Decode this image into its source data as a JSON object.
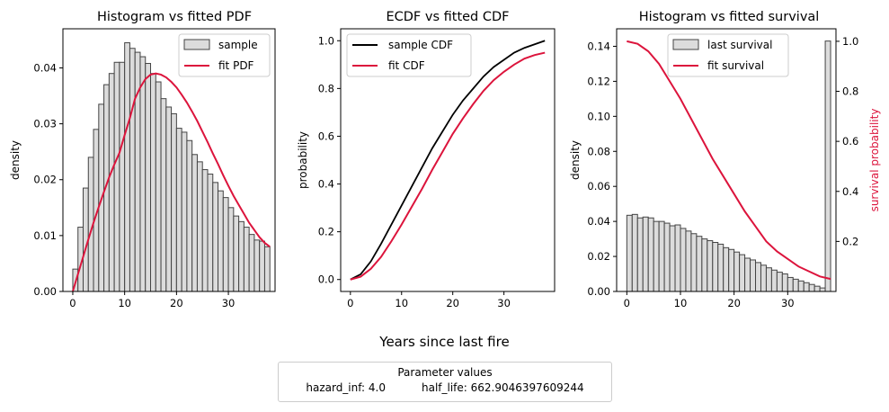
{
  "figure": {
    "xlabel": "Years since last fire",
    "params_title": "Parameter values",
    "params": [
      {
        "label": "hazard_inf: 4.0"
      },
      {
        "label": "half_life: 662.9046397609244"
      }
    ]
  },
  "colors": {
    "fit": "#dc143c",
    "bar_fill": "#dcdcdc",
    "bar_edge": "#444444",
    "ecdf": "#000000"
  },
  "chart_data": [
    {
      "type": "bar",
      "title": "Histogram vs fitted PDF",
      "xlabel": "",
      "ylabel": "density",
      "xlim": [
        -1.9,
        39.0
      ],
      "ylim": [
        0,
        0.047
      ],
      "xticks": [
        0,
        10,
        20,
        30
      ],
      "yticks": [
        0.0,
        0.01,
        0.02,
        0.03,
        0.04
      ],
      "ytick_labels": [
        "0.00",
        "0.01",
        "0.02",
        "0.03",
        "0.04"
      ],
      "bin_width": 1.0,
      "bin_starts": [
        0,
        1,
        2,
        3,
        4,
        5,
        6,
        7,
        8,
        9,
        10,
        11,
        12,
        13,
        14,
        15,
        16,
        17,
        18,
        19,
        20,
        21,
        22,
        23,
        24,
        25,
        26,
        27,
        28,
        29,
        30,
        31,
        32,
        33,
        34,
        35,
        36,
        37
      ],
      "values": [
        0.004,
        0.0115,
        0.0185,
        0.024,
        0.029,
        0.0335,
        0.037,
        0.039,
        0.041,
        0.041,
        0.0445,
        0.0435,
        0.0428,
        0.042,
        0.0408,
        0.039,
        0.0375,
        0.0345,
        0.033,
        0.0318,
        0.0292,
        0.0285,
        0.027,
        0.0245,
        0.0232,
        0.0218,
        0.021,
        0.0195,
        0.018,
        0.0168,
        0.015,
        0.0135,
        0.0125,
        0.0115,
        0.0102,
        0.0092,
        0.009,
        0.008
      ],
      "fit_x": [
        0,
        1,
        2,
        3,
        4,
        5,
        6,
        7,
        8,
        9,
        10,
        11,
        12,
        13,
        14,
        15,
        16,
        17,
        18,
        19,
        20,
        21,
        22,
        23,
        24,
        25,
        26,
        27,
        28,
        29,
        30,
        31,
        32,
        33,
        34,
        35,
        36,
        37,
        38
      ],
      "fit_y": [
        0.0,
        0.0031,
        0.0062,
        0.0093,
        0.0123,
        0.0151,
        0.0178,
        0.0204,
        0.0227,
        0.0248,
        0.028,
        0.031,
        0.0345,
        0.0365,
        0.038,
        0.0388,
        0.039,
        0.0388,
        0.0383,
        0.0375,
        0.0365,
        0.0352,
        0.0338,
        0.0322,
        0.0305,
        0.0286,
        0.0267,
        0.0247,
        0.0228,
        0.0208,
        0.0189,
        0.0171,
        0.0155,
        0.0139,
        0.0123,
        0.011,
        0.0097,
        0.0087,
        0.008
      ],
      "legend": [
        {
          "name": "sample"
        },
        {
          "name": "fit PDF"
        }
      ],
      "legend_position": "upper right"
    },
    {
      "type": "line",
      "title": "ECDF vs fitted CDF",
      "xlabel": "",
      "ylabel": "probability",
      "xlim": [
        -1.9,
        39.9
      ],
      "ylim": [
        -0.05,
        1.05
      ],
      "xticks": [
        0,
        10,
        20,
        30
      ],
      "yticks": [
        0.0,
        0.2,
        0.4,
        0.6,
        0.8,
        1.0
      ],
      "ytick_labels": [
        "0.0",
        "0.2",
        "0.4",
        "0.6",
        "0.8",
        "1.0"
      ],
      "x": [
        0,
        2,
        4,
        6,
        8,
        10,
        12,
        14,
        16,
        18,
        20,
        22,
        24,
        26,
        28,
        30,
        32,
        34,
        36,
        38
      ],
      "series": [
        {
          "name": "sample CDF",
          "values": [
            0.0,
            0.022,
            0.076,
            0.15,
            0.23,
            0.31,
            0.39,
            0.47,
            0.55,
            0.62,
            0.69,
            0.75,
            0.8,
            0.85,
            0.89,
            0.92,
            0.95,
            0.97,
            0.985,
            1.0
          ]
        },
        {
          "name": "fit CDF",
          "values": [
            0.0,
            0.012,
            0.045,
            0.095,
            0.16,
            0.23,
            0.305,
            0.38,
            0.46,
            0.535,
            0.61,
            0.675,
            0.735,
            0.79,
            0.835,
            0.87,
            0.9,
            0.925,
            0.94,
            0.95
          ]
        }
      ],
      "legend_position": "upper left"
    },
    {
      "type": "bar",
      "title": "Histogram vs fitted survival",
      "xlabel": "",
      "ylabel": "density",
      "y2label": "survival probability",
      "xlim": [
        -1.9,
        39.0
      ],
      "ylim": [
        0,
        0.15
      ],
      "y2lim": [
        0.0,
        1.05
      ],
      "xticks": [
        0,
        10,
        20,
        30
      ],
      "yticks": [
        0.0,
        0.02,
        0.04,
        0.06,
        0.08,
        0.1,
        0.12,
        0.14
      ],
      "ytick_labels": [
        "0.00",
        "0.02",
        "0.04",
        "0.06",
        "0.08",
        "0.10",
        "0.12",
        "0.14"
      ],
      "y2ticks": [
        0.2,
        0.4,
        0.6,
        0.8,
        1.0
      ],
      "y2tick_labels": [
        "0.2",
        "0.4",
        "0.6",
        "0.8",
        "1.0"
      ],
      "bin_width": 1.0,
      "bin_starts": [
        0,
        1,
        2,
        3,
        4,
        5,
        6,
        7,
        8,
        9,
        10,
        11,
        12,
        13,
        14,
        15,
        16,
        17,
        18,
        19,
        20,
        21,
        22,
        23,
        24,
        25,
        26,
        27,
        28,
        29,
        30,
        31,
        32,
        33,
        34,
        35,
        36,
        37
      ],
      "values": [
        0.0435,
        0.044,
        0.042,
        0.0425,
        0.042,
        0.04,
        0.04,
        0.039,
        0.0375,
        0.038,
        0.036,
        0.0345,
        0.033,
        0.0315,
        0.03,
        0.029,
        0.028,
        0.027,
        0.025,
        0.024,
        0.0225,
        0.021,
        0.019,
        0.018,
        0.0165,
        0.015,
        0.0135,
        0.0122,
        0.011,
        0.01,
        0.008,
        0.007,
        0.006,
        0.005,
        0.004,
        0.003,
        0.002,
        0.143
      ],
      "fit_x": [
        0,
        2,
        4,
        6,
        8,
        10,
        12,
        14,
        16,
        18,
        20,
        22,
        24,
        26,
        28,
        30,
        32,
        34,
        36,
        38
      ],
      "fit_y2": [
        1.0,
        0.99,
        0.96,
        0.91,
        0.84,
        0.77,
        0.69,
        0.61,
        0.53,
        0.46,
        0.39,
        0.32,
        0.26,
        0.2,
        0.16,
        0.13,
        0.1,
        0.08,
        0.06,
        0.05
      ],
      "legend": [
        {
          "name": "last survival"
        },
        {
          "name": "fit survival"
        }
      ],
      "legend_position": "upper center"
    }
  ]
}
